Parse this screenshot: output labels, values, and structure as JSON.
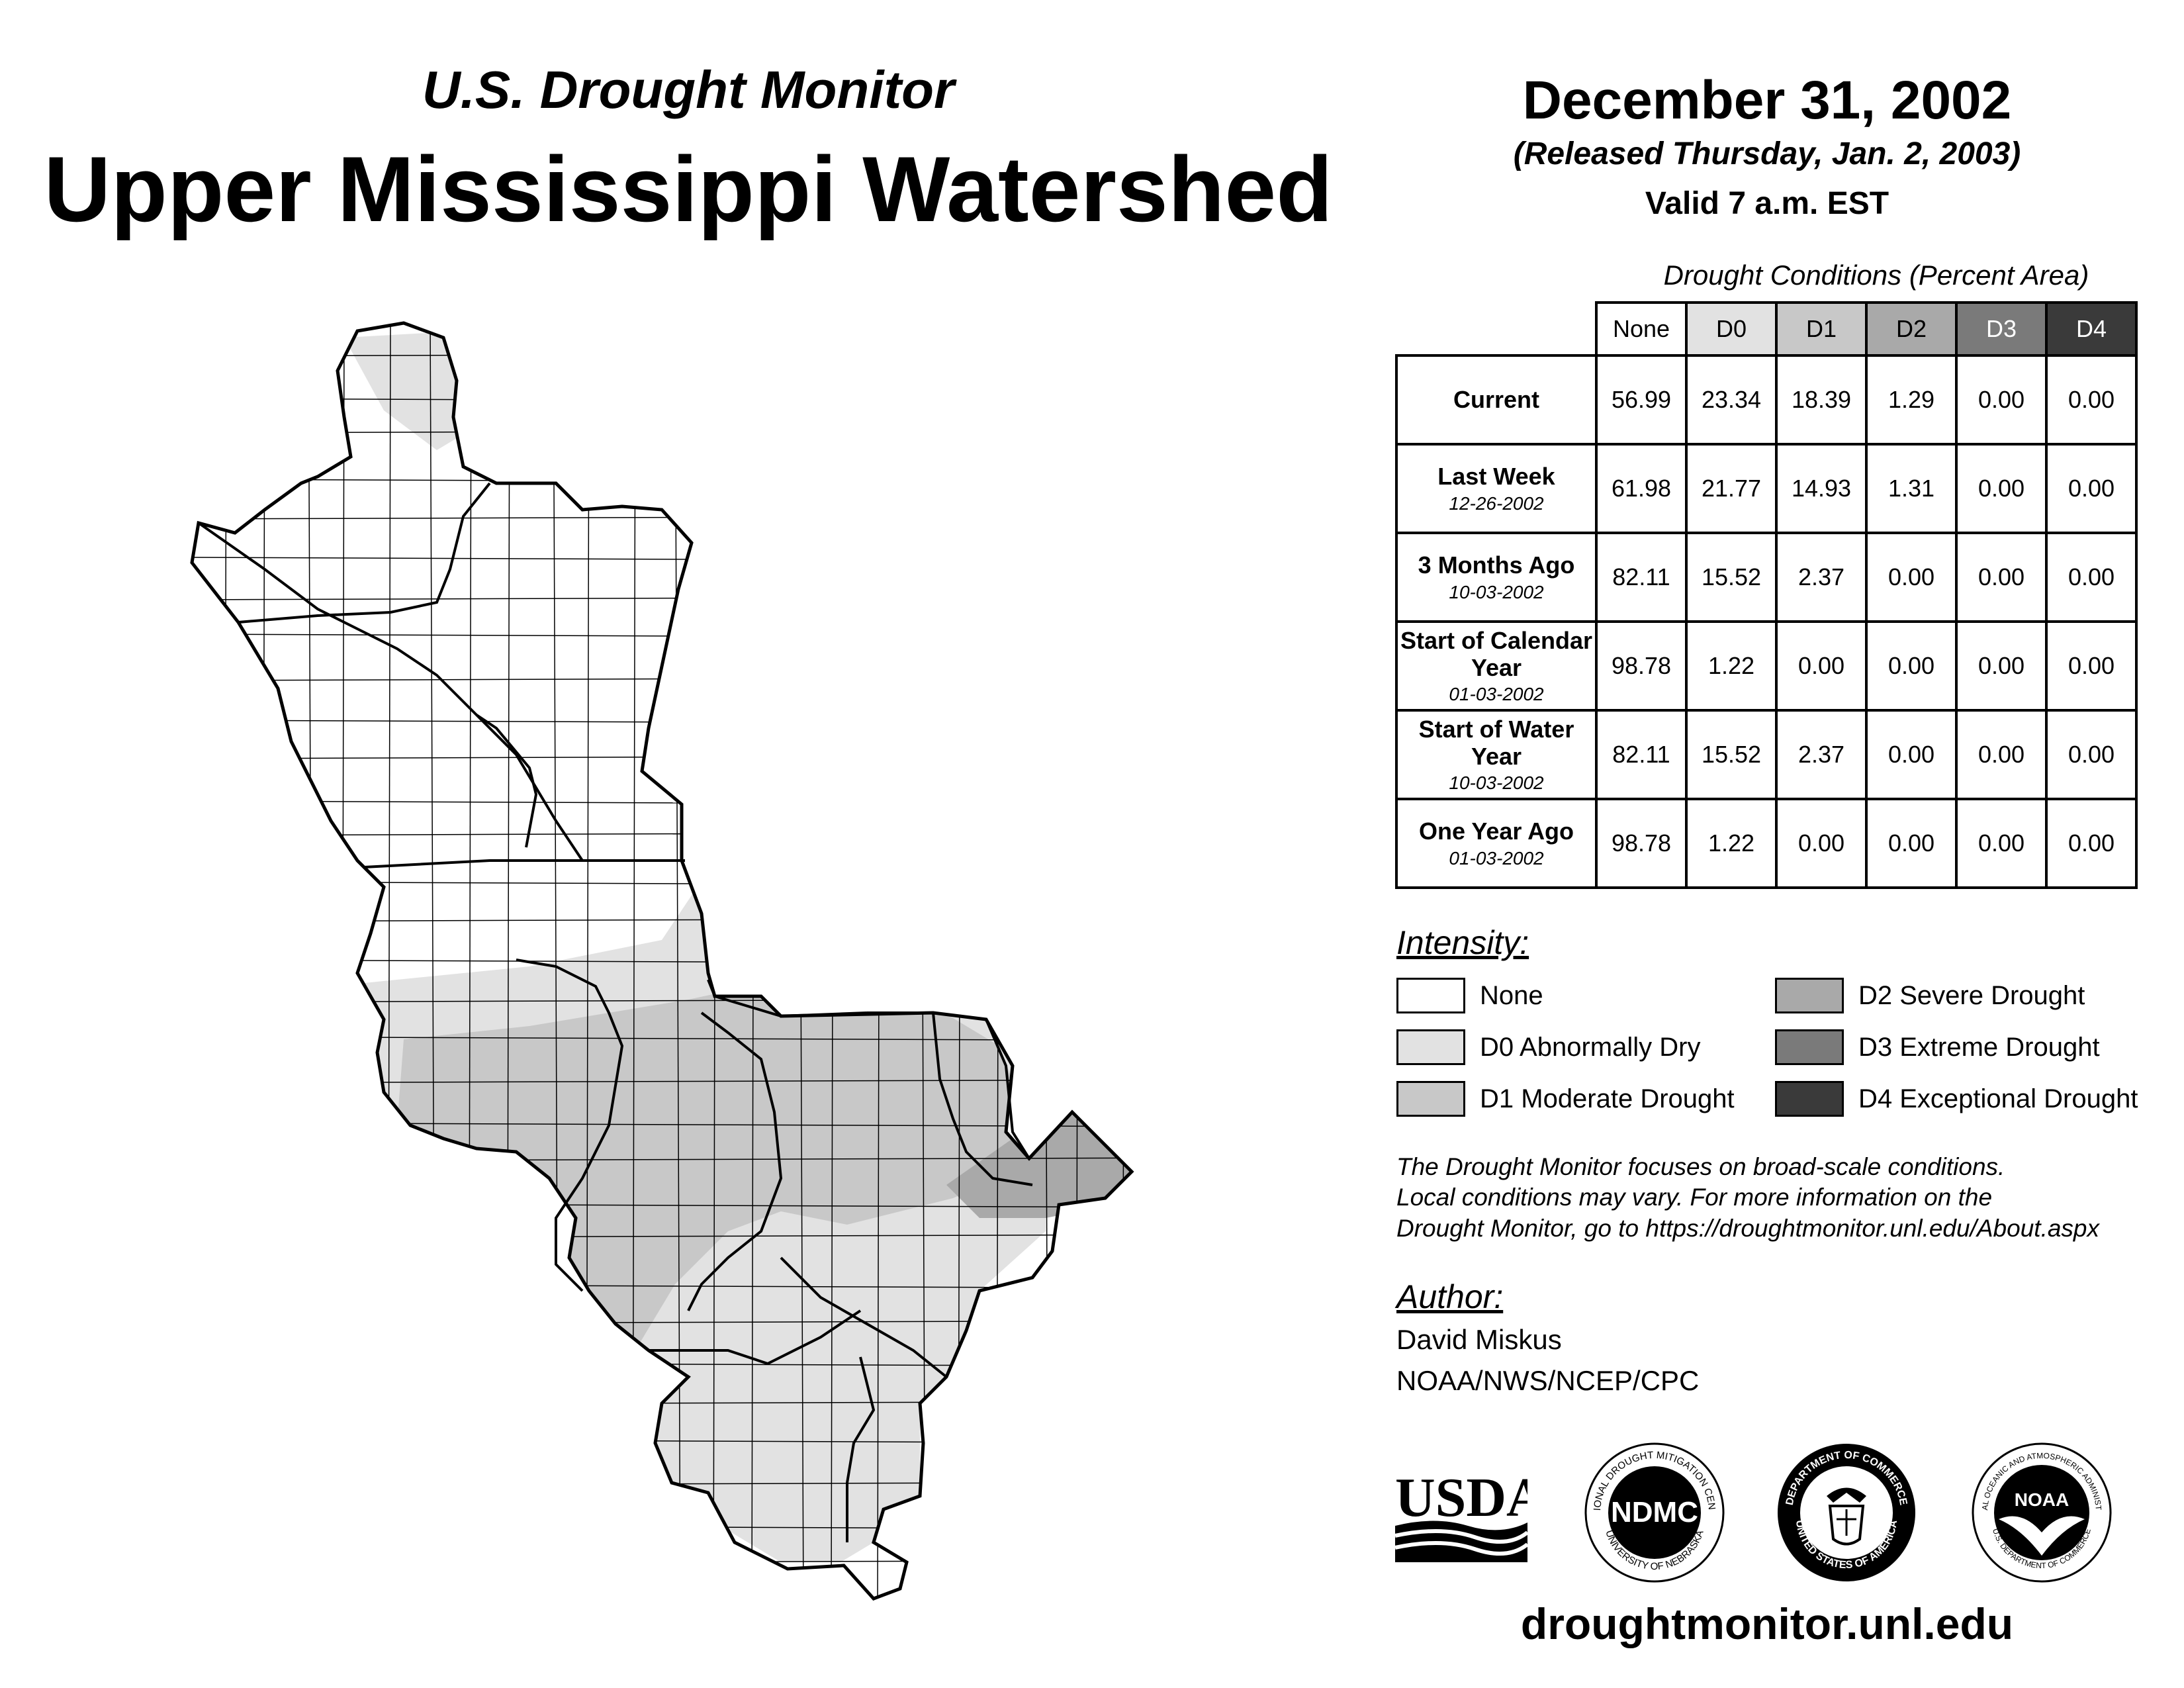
{
  "header": {
    "subtitle": "U.S. Drought Monitor",
    "title": "Upper Mississippi Watershed",
    "date": "December 31, 2002",
    "released": "(Released Thursday, Jan. 2, 2003)",
    "valid": "Valid 7 a.m. EST"
  },
  "table": {
    "caption": "Drought Conditions (Percent Area)",
    "columns": [
      "None",
      "D0",
      "D1",
      "D2",
      "D3",
      "D4"
    ],
    "rows": [
      {
        "label": "Current",
        "date": "",
        "values": [
          "56.99",
          "23.34",
          "18.39",
          "1.29",
          "0.00",
          "0.00"
        ]
      },
      {
        "label": "Last Week",
        "date": "12-26-2002",
        "values": [
          "61.98",
          "21.77",
          "14.93",
          "1.31",
          "0.00",
          "0.00"
        ]
      },
      {
        "label": "3 Months Ago",
        "date": "10-03-2002",
        "values": [
          "82.11",
          "15.52",
          "2.37",
          "0.00",
          "0.00",
          "0.00"
        ]
      },
      {
        "label": "Start of Calendar Year",
        "date": "01-03-2002",
        "values": [
          "98.78",
          "1.22",
          "0.00",
          "0.00",
          "0.00",
          "0.00"
        ]
      },
      {
        "label": "Start of Water Year",
        "date": "10-03-2002",
        "values": [
          "82.11",
          "15.52",
          "2.37",
          "0.00",
          "0.00",
          "0.00"
        ]
      },
      {
        "label": "One Year Ago",
        "date": "01-03-2002",
        "values": [
          "98.78",
          "1.22",
          "0.00",
          "0.00",
          "0.00",
          "0.00"
        ]
      }
    ]
  },
  "legend": {
    "title": "Intensity:",
    "items": [
      {
        "label": "None",
        "color": "#ffffff"
      },
      {
        "label": "D0 Abnormally Dry",
        "color": "#e2e2e2"
      },
      {
        "label": "D1 Moderate Drought",
        "color": "#c8c8c8"
      },
      {
        "label": "D2 Severe Drought",
        "color": "#a9a9a9"
      },
      {
        "label": "D3 Extreme Drought",
        "color": "#7a7a7a"
      },
      {
        "label": "D4 Exceptional Drought",
        "color": "#3a3a3a"
      }
    ]
  },
  "disclaimer": {
    "line1": "The Drought Monitor focuses on broad-scale conditions.",
    "line2": "Local conditions may vary. For more information on the",
    "line3": "Drought Monitor, go to https://droughtmonitor.unl.edu/About.aspx"
  },
  "author": {
    "title": "Author:",
    "name": "David Miskus",
    "org": "NOAA/NWS/NCEP/CPC"
  },
  "logos": {
    "usda": "USDA",
    "ndmc": "NDMC",
    "ndmc_ring_top": "NATIONAL DROUGHT MITIGATION CENTER",
    "ndmc_ring_bottom": "UNIVERSITY OF NEBRASKA",
    "doc_ring_top": "DEPARTMENT OF COMMERCE",
    "doc_ring_bottom": "UNITED STATES OF AMERICA",
    "noaa": "NOAA",
    "noaa_ring_top": "NATIONAL OCEANIC AND ATMOSPHERIC ADMINISTRATION",
    "noaa_ring_bottom": "U.S. DEPARTMENT OF COMMERCE"
  },
  "website": "droughtmonitor.unl.edu",
  "map_colors": {
    "none": "#ffffff",
    "d0": "#e2e2e2",
    "d1": "#c8c8c8",
    "d2": "#a9a9a9",
    "outline": "#000000"
  }
}
